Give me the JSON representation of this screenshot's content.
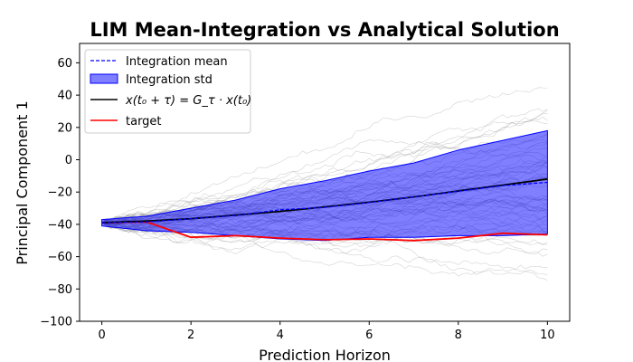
{
  "chart_data": {
    "type": "line",
    "title": "LIM Mean-Integration vs Analytical Solution",
    "xlabel": "Prediction Horizon",
    "ylabel": "Principal Component 1",
    "xlim": [
      -0.5,
      10.5
    ],
    "ylim": [
      -100,
      72
    ],
    "xticks": [
      0,
      2,
      4,
      6,
      8,
      10
    ],
    "yticks": [
      -100,
      -80,
      -60,
      -40,
      -20,
      0,
      20,
      40,
      60
    ],
    "grid": false,
    "legend_position": "upper-left",
    "x": [
      0,
      1,
      2,
      3,
      4,
      5,
      6,
      7,
      8,
      9,
      10
    ],
    "series": [
      {
        "name": "Integration mean",
        "style": "dashed",
        "color": "#0000ff",
        "values": [
          -39,
          -38.5,
          -36.5,
          -34.5,
          -31,
          -29.5,
          -26.5,
          -23,
          -19.5,
          -16,
          -14
        ]
      },
      {
        "name": "Integration std",
        "style": "band",
        "color": "#0000ff",
        "upper": [
          -37,
          -35,
          -30,
          -25,
          -18,
          -13,
          -7,
          -2,
          6,
          12,
          18
        ],
        "lower": [
          -41,
          -44,
          -45,
          -47,
          -49,
          -50,
          -48,
          -48,
          -47,
          -47,
          -46
        ]
      },
      {
        "name": "x(t₀ + τ) = G_τ · x(t₀)",
        "style": "solid",
        "color": "#000000",
        "values": [
          -39,
          -38,
          -36.5,
          -34.3,
          -32,
          -29.2,
          -26.3,
          -23,
          -19.3,
          -15.7,
          -12
        ]
      },
      {
        "name": "target",
        "style": "solid",
        "color": "#ff0000",
        "values": [
          -39,
          -38.5,
          -48,
          -47,
          -48.5,
          -49.5,
          -49,
          -50,
          -48.5,
          -45.5,
          -46.5
        ]
      }
    ],
    "background_trajectories": {
      "color": "#808080",
      "count": 60
    }
  }
}
